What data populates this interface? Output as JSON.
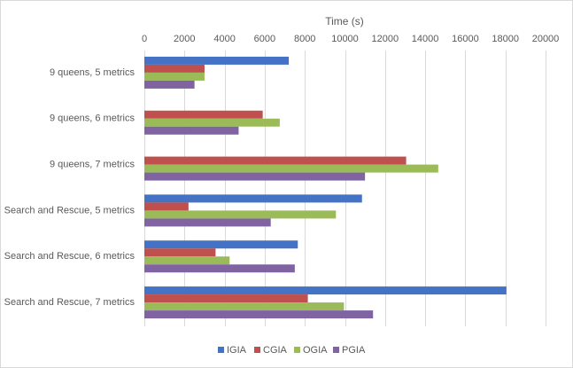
{
  "chart_data": {
    "type": "bar",
    "orientation": "horizontal",
    "title": "",
    "xlabel": "Time (s)",
    "ylabel": "",
    "xlim": [
      0,
      20000
    ],
    "x_ticks": [
      0,
      2000,
      4000,
      6000,
      8000,
      10000,
      12000,
      14000,
      16000,
      18000,
      20000
    ],
    "grid": true,
    "legend_position": "bottom",
    "categories": [
      "9 queens, 5 metrics",
      "9 queens, 6 metrics",
      "9 queens, 7 metrics",
      "Search and Rescue, 5 metrics",
      "Search and Rescue, 6 metrics",
      "Search and Rescue, 7 metrics"
    ],
    "series": [
      {
        "name": "IGIA",
        "color": "#4472c4",
        "values": [
          7200,
          0,
          0,
          10850,
          7650,
          18050
        ]
      },
      {
        "name": "CGIA",
        "color": "#c0504d",
        "values": [
          3000,
          5900,
          13050,
          2200,
          3550,
          8150
        ]
      },
      {
        "name": "OGIA",
        "color": "#9bbb59",
        "values": [
          3000,
          6750,
          14650,
          9550,
          4250,
          9950
        ]
      },
      {
        "name": "PGIA",
        "color": "#8064a2",
        "values": [
          2500,
          4700,
          11000,
          6300,
          7500,
          11400
        ]
      }
    ]
  }
}
